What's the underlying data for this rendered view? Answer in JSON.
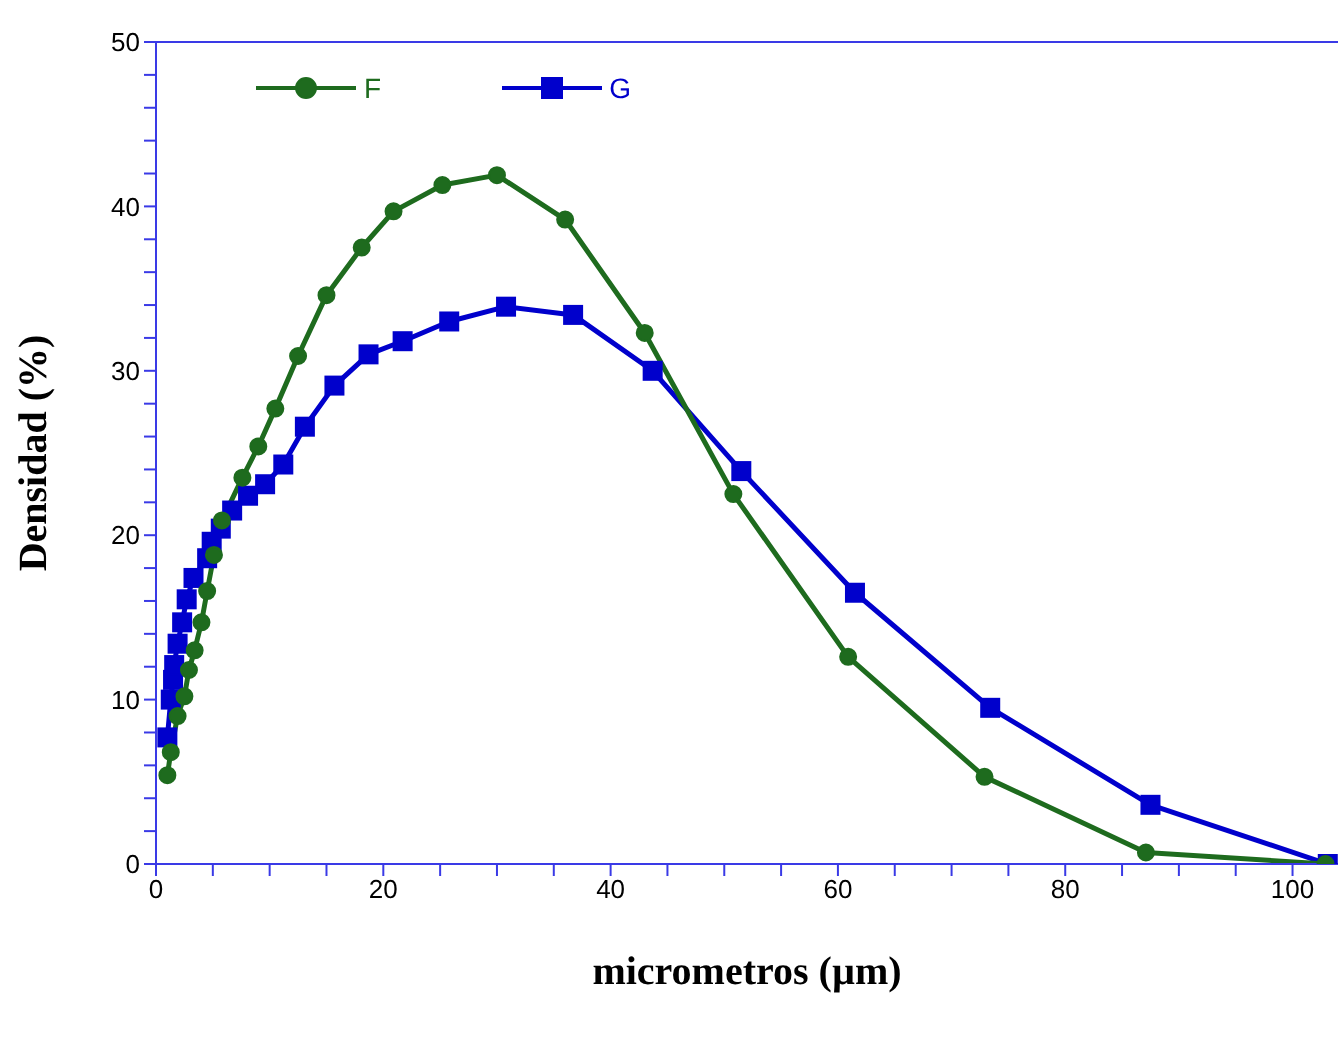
{
  "chart_data": {
    "type": "line",
    "xlabel": "micrometros (µm)",
    "ylabel": "Densidad (%)",
    "xlim": [
      0,
      104
    ],
    "ylim": [
      0,
      50
    ],
    "xticks": [
      0,
      {
        "value": 5,
        "label": null
      },
      {
        "value": 10,
        "label": null
      },
      {
        "value": 15,
        "label": null
      },
      20,
      {
        "value": 25,
        "label": null
      },
      {
        "value": 30,
        "label": null
      },
      {
        "value": 35,
        "label": null
      },
      40,
      {
        "value": 45,
        "label": null
      },
      {
        "value": 50,
        "label": null
      },
      {
        "value": 55,
        "label": null
      },
      60,
      {
        "value": 65,
        "label": null
      },
      {
        "value": 70,
        "label": null
      },
      {
        "value": 75,
        "label": null
      },
      80,
      {
        "value": 85,
        "label": null
      },
      {
        "value": 90,
        "label": null
      },
      {
        "value": 95,
        "label": null
      },
      100
    ],
    "yticks": [
      0,
      {
        "value": 2,
        "label": null
      },
      {
        "value": 4,
        "label": null
      },
      {
        "value": 6,
        "label": null
      },
      {
        "value": 8,
        "label": null
      },
      10,
      {
        "value": 12,
        "label": null
      },
      {
        "value": 14,
        "label": null
      },
      {
        "value": 16,
        "label": null
      },
      {
        "value": 18,
        "label": null
      },
      20,
      {
        "value": 22,
        "label": null
      },
      {
        "value": 24,
        "label": null
      },
      {
        "value": 26,
        "label": null
      },
      {
        "value": 28,
        "label": null
      },
      30,
      {
        "value": 32,
        "label": null
      },
      {
        "value": 34,
        "label": null
      },
      {
        "value": 36,
        "label": null
      },
      {
        "value": 38,
        "label": null
      },
      40,
      {
        "value": 42,
        "label": null
      },
      {
        "value": 44,
        "label": null
      },
      {
        "value": 46,
        "label": null
      },
      {
        "value": 48,
        "label": null
      },
      50
    ],
    "grid": false,
    "legend": "top left",
    "line_style": "solid",
    "series": [
      {
        "name": "F",
        "color": "#1e6b1e",
        "marker": "circle",
        "x": [
          1.0,
          1.3,
          1.9,
          2.5,
          2.9,
          3.4,
          4.0,
          4.5,
          5.1,
          5.8,
          7.6,
          9.0,
          10.5,
          12.5,
          15.0,
          18.1,
          20.9,
          25.2,
          30.0,
          36.0,
          43.0,
          50.8,
          60.9,
          72.9,
          87.1,
          102.9
        ],
        "values": [
          5.4,
          6.8,
          9.0,
          10.2,
          11.8,
          13.0,
          14.7,
          16.6,
          18.8,
          20.9,
          23.5,
          25.4,
          27.7,
          30.9,
          34.6,
          37.5,
          39.7,
          41.3,
          41.9,
          39.2,
          32.3,
          22.5,
          12.6,
          5.3,
          0.7,
          0
        ]
      },
      {
        "name": "G",
        "color": "#0000cc",
        "marker": "square",
        "x": [
          1.0,
          1.3,
          1.5,
          1.6,
          1.9,
          2.3,
          2.7,
          3.3,
          4.5,
          4.9,
          5.7,
          6.7,
          8.1,
          9.6,
          11.2,
          13.1,
          15.7,
          18.7,
          21.7,
          25.8,
          30.8,
          36.7,
          43.7,
          51.5,
          61.5,
          73.4,
          87.5,
          103.1
        ],
        "values": [
          7.7,
          10.0,
          11.2,
          12.1,
          13.4,
          14.7,
          16.1,
          17.4,
          18.6,
          19.6,
          20.4,
          21.5,
          22.4,
          23.1,
          24.3,
          26.6,
          29.1,
          31.0,
          31.8,
          33.0,
          33.9,
          33.4,
          30.0,
          23.9,
          16.5,
          9.5,
          3.6,
          0
        ]
      }
    ]
  }
}
